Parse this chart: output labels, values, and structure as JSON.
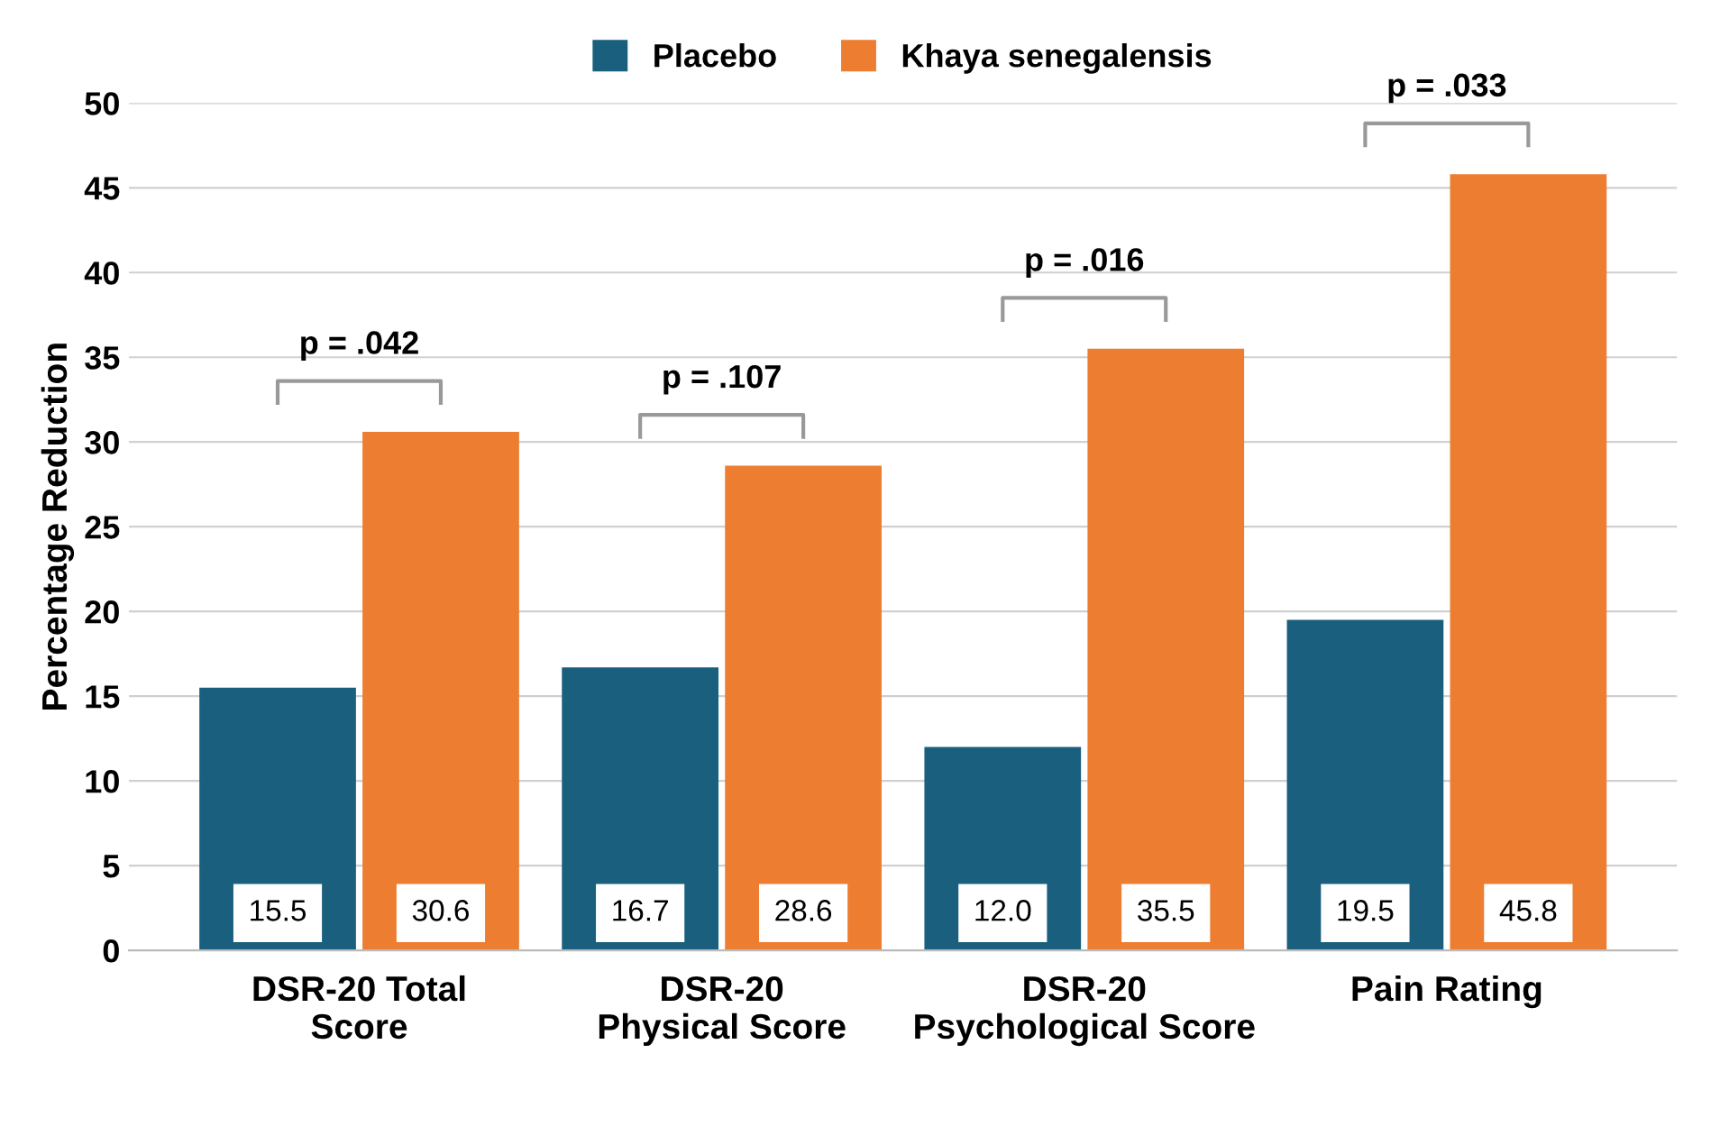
{
  "chart_data": {
    "type": "bar",
    "ylabel": "Percentage Reduction",
    "categories": [
      "DSR-20 Total\nScore",
      "DSR-20\nPhysical Score",
      "DSR-20\nPsychological Score",
      "Pain Rating"
    ],
    "series": [
      {
        "name": "Placebo",
        "color": "#1a5f7e",
        "values": [
          15.5,
          16.7,
          12.0,
          19.5
        ],
        "value_labels": [
          "15.5",
          "16.7",
          "12.0",
          "19.5"
        ]
      },
      {
        "name": "Khaya senegalensis",
        "color": "#ed7d31",
        "values": [
          30.6,
          28.6,
          35.5,
          45.8
        ],
        "value_labels": [
          "30.6",
          "28.6",
          "35.5",
          "45.8"
        ]
      }
    ],
    "ylim": [
      0,
      50
    ],
    "yticks": [
      0,
      5,
      10,
      15,
      20,
      25,
      30,
      35,
      40,
      45,
      50
    ],
    "grid": "y",
    "legend": "top",
    "annotations": [
      "p = .042",
      "p = .107",
      "p = .016",
      "p = .033"
    ]
  }
}
